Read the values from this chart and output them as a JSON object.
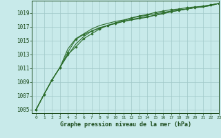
{
  "title": "Graphe pression niveau de la mer (hPa)",
  "background_color": "#c8eaea",
  "grid_color": "#a0c8c8",
  "line_color": "#2d6e2d",
  "text_color": "#1a4a1a",
  "xlim": [
    -0.5,
    23
  ],
  "ylim": [
    1004.5,
    1020.8
  ],
  "yticks": [
    1005,
    1007,
    1009,
    1011,
    1013,
    1015,
    1017,
    1019
  ],
  "xticks": [
    0,
    1,
    2,
    3,
    4,
    5,
    6,
    7,
    8,
    9,
    10,
    11,
    12,
    13,
    14,
    15,
    16,
    17,
    18,
    19,
    20,
    21,
    22,
    23
  ],
  "series": [
    [
      1005.0,
      1007.2,
      1009.3,
      1011.1,
      1013.0,
      1014.1,
      1015.3,
      1016.0,
      1016.7,
      1017.2,
      1017.6,
      1017.9,
      1018.3,
      1018.6,
      1018.8,
      1019.1,
      1019.3,
      1019.5,
      1019.6,
      1019.8,
      1019.9,
      1020.0,
      1020.2,
      1020.4
    ],
    [
      1005.0,
      1007.2,
      1009.3,
      1011.1,
      1013.3,
      1015.2,
      1015.9,
      1016.4,
      1016.8,
      1017.2,
      1017.5,
      1017.8,
      1018.1,
      1018.3,
      1018.5,
      1018.7,
      1019.0,
      1019.2,
      1019.4,
      1019.6,
      1019.8,
      1020.0,
      1020.2,
      1020.4
    ],
    [
      1005.0,
      1007.2,
      1009.3,
      1011.1,
      1012.9,
      1014.5,
      1015.6,
      1016.4,
      1016.9,
      1017.2,
      1017.5,
      1017.8,
      1018.0,
      1018.2,
      1018.4,
      1018.7,
      1018.9,
      1019.2,
      1019.4,
      1019.6,
      1019.8,
      1019.9,
      1020.1,
      1020.4
    ],
    [
      1005.0,
      1007.2,
      1009.3,
      1011.1,
      1013.8,
      1015.3,
      1016.0,
      1016.7,
      1017.2,
      1017.5,
      1017.8,
      1018.0,
      1018.3,
      1018.5,
      1018.7,
      1018.9,
      1019.1,
      1019.3,
      1019.5,
      1019.6,
      1019.8,
      1019.9,
      1020.1,
      1020.4
    ]
  ],
  "marker_series": [
    0,
    1
  ],
  "marker": "D",
  "marker_size": 1.8,
  "linewidth": 0.8
}
